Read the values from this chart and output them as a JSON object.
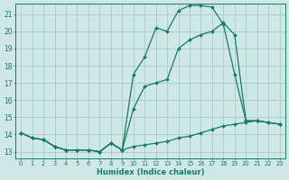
{
  "xlabel": "Humidex (Indice chaleur)",
  "bg_color": "#cde8e5",
  "grid_color": "#b0cfcc",
  "line_color": "#1a7a6e",
  "xlim": [
    -0.5,
    23.5
  ],
  "ylim": [
    12.6,
    21.6
  ],
  "xticks": [
    0,
    1,
    2,
    3,
    4,
    5,
    6,
    7,
    8,
    9,
    10,
    11,
    12,
    13,
    14,
    15,
    16,
    17,
    18,
    19,
    20,
    21,
    22,
    23
  ],
  "yticks": [
    13,
    14,
    15,
    16,
    17,
    18,
    19,
    20,
    21
  ],
  "line1_x": [
    0,
    1,
    2,
    3,
    4,
    5,
    6,
    7,
    8,
    9,
    10,
    11,
    12,
    13,
    14,
    15,
    16,
    17,
    18,
    19,
    20,
    21,
    22,
    23
  ],
  "line1_y": [
    14.1,
    13.8,
    13.7,
    13.3,
    13.1,
    13.1,
    13.1,
    13.0,
    13.5,
    13.1,
    13.3,
    13.4,
    13.5,
    13.6,
    13.8,
    13.9,
    14.1,
    14.3,
    14.5,
    14.6,
    14.7,
    14.8,
    14.7,
    14.6
  ],
  "line2_x": [
    0,
    1,
    2,
    3,
    4,
    5,
    6,
    7,
    8,
    9,
    10,
    11,
    12,
    13,
    14,
    15,
    16,
    17,
    18,
    19,
    20,
    21,
    22,
    23
  ],
  "line2_y": [
    14.1,
    13.8,
    13.7,
    13.3,
    13.1,
    13.1,
    13.1,
    13.0,
    13.5,
    13.1,
    15.5,
    16.8,
    17.0,
    17.2,
    19.0,
    19.5,
    19.8,
    20.0,
    20.5,
    19.8,
    14.8,
    14.8,
    14.7,
    14.6
  ],
  "line3_x": [
    0,
    1,
    2,
    3,
    4,
    5,
    6,
    7,
    8,
    9,
    10,
    11,
    12,
    13,
    14,
    15,
    16,
    17,
    18,
    19,
    20,
    21,
    22,
    23
  ],
  "line3_y": [
    14.1,
    13.8,
    13.7,
    13.3,
    13.1,
    13.1,
    13.1,
    13.0,
    13.5,
    13.1,
    17.5,
    18.5,
    20.2,
    20.0,
    21.2,
    21.5,
    21.5,
    21.4,
    20.4,
    17.5,
    14.8,
    14.8,
    14.7,
    14.6
  ]
}
